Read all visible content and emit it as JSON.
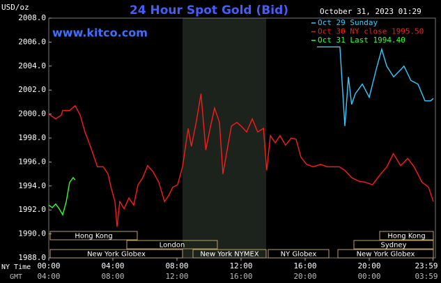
{
  "chart_data": {
    "type": "line",
    "title": "24 Hour Spot Gold (Bid)",
    "timestamp": "October 31, 2023 01:29",
    "y_unit": "USD/oz",
    "watermark": "www.kitco.com",
    "x_row_labels": [
      "NY Time",
      "GMT"
    ],
    "xlim": [
      0,
      24
    ],
    "ylim": [
      1988,
      2008
    ],
    "yticks": [
      {
        "value": 1988,
        "label": "1988.0"
      },
      {
        "value": 1990,
        "label": "1990.0"
      },
      {
        "value": 1992,
        "label": "1992.0"
      },
      {
        "value": 1994,
        "label": "1994.0"
      },
      {
        "value": 1996,
        "label": "1996.0"
      },
      {
        "value": 1998,
        "label": "1998.0"
      },
      {
        "value": 2000,
        "label": "2000.0"
      },
      {
        "value": 2002,
        "label": "2002.0"
      },
      {
        "value": 2004,
        "label": "2004.0"
      },
      {
        "value": 2006,
        "label": "2006.0"
      },
      {
        "value": 2008,
        "label": "2008.0"
      }
    ],
    "xticks": [
      {
        "value": 0,
        "label": "00:00"
      },
      {
        "value": 4,
        "label": "04:00"
      },
      {
        "value": 8,
        "label": "08:00"
      },
      {
        "value": 12,
        "label": "12:00"
      },
      {
        "value": 16,
        "label": "16:00"
      },
      {
        "value": 20,
        "label": "20:00"
      },
      {
        "value": 23.983,
        "label": "23:59"
      }
    ],
    "x2ticks": [
      {
        "value": 0,
        "label": "04:00"
      },
      {
        "value": 4,
        "label": "08:00"
      },
      {
        "value": 8,
        "label": "12:00"
      },
      {
        "value": 12,
        "label": "16:00"
      },
      {
        "value": 16,
        "label": "20:00"
      },
      {
        "value": 20,
        "label": "00:00"
      },
      {
        "value": 23.983,
        "label": "03:59"
      }
    ],
    "sessions": [
      "Hong Kong",
      "London",
      "New York Globex",
      "New York NYMEX",
      "NY Globex",
      "New York Globex",
      "Sydney",
      "Hong Kong"
    ],
    "series": [
      {
        "name": "Oct 29 Sunday",
        "color": "#33ccff",
        "x": [
          16.74,
          18.17,
          18.48,
          18.7,
          18.9,
          19.13,
          19.57,
          20.0,
          20.43,
          20.78,
          21.09,
          21.52,
          21.96,
          22.17,
          22.6,
          23.04,
          23.48,
          23.83,
          24
        ],
        "values": [
          2005.6,
          2005.6,
          1999.0,
          2003.1,
          2000.8,
          2001.7,
          2002.5,
          2001.4,
          2003.7,
          2005.4,
          2004.0,
          2003.1,
          2003.7,
          2004.0,
          2002.8,
          2002.5,
          2001.1,
          2001.1,
          2001.3
        ]
      },
      {
        "name": "Oct 30 NY close 1995.50",
        "color": "#ff1a1a",
        "x": [
          0,
          0.43,
          0.78,
          0.87,
          1.3,
          1.65,
          1.96,
          2.26,
          2.6,
          3.04,
          3.4,
          3.7,
          3.9,
          4.13,
          4.26,
          4.43,
          4.7,
          5.0,
          5.3,
          5.57,
          5.87,
          6.17,
          6.5,
          6.87,
          7.22,
          7.48,
          7.74,
          8.04,
          8.35,
          8.7,
          8.9,
          9.2,
          9.5,
          9.8,
          10.1,
          10.35,
          10.65,
          10.87,
          11.13,
          11.4,
          11.74,
          12.0,
          12.35,
          12.7,
          13.04,
          13.4,
          13.6,
          13.83,
          14.13,
          14.43,
          14.78,
          15.13,
          15.43,
          15.74,
          16.09,
          16.5,
          16.96,
          17.39,
          18.13,
          18.48,
          18.9,
          19.35,
          19.78,
          20.2,
          20.65,
          21.1,
          21.5,
          21.96,
          22.4,
          22.8,
          23.3,
          23.7,
          24
        ],
        "values": [
          2000.0,
          1999.6,
          1999.9,
          2000.3,
          2000.3,
          2000.7,
          1999.9,
          1998.5,
          1997.3,
          1995.6,
          1995.6,
          1995.0,
          1993.8,
          1992.7,
          1990.6,
          1992.7,
          1992.1,
          1993.0,
          1992.4,
          1994.1,
          1994.7,
          1995.7,
          1995.2,
          1994.3,
          1992.7,
          1993.2,
          1993.9,
          1994.1,
          1995.6,
          1998.8,
          1997.3,
          1999.3,
          2001.7,
          1997.0,
          1999.0,
          2000.5,
          1999.3,
          1995.0,
          1997.0,
          1999.0,
          1999.3,
          1999.0,
          1998.5,
          1999.6,
          1998.5,
          1998.8,
          1995.3,
          1998.2,
          1997.6,
          1998.2,
          1997.4,
          1998.0,
          1997.9,
          1996.4,
          1995.8,
          1995.6,
          1995.8,
          1995.6,
          1995.6,
          1995.3,
          1994.7,
          1994.4,
          1994.3,
          1994.1,
          1994.9,
          1995.6,
          1996.7,
          1995.7,
          1996.3,
          1995.6,
          1994.3,
          1993.9,
          1992.7
        ]
      },
      {
        "name": "Oct 31 Last 1994.40",
        "color": "#33ff33",
        "x": [
          0,
          0.22,
          0.43,
          0.65,
          0.87,
          1.09,
          1.3,
          1.52,
          1.65
        ],
        "values": [
          1992.4,
          1992.2,
          1992.5,
          1992.1,
          1991.6,
          1992.7,
          1994.3,
          1994.7,
          1994.5
        ]
      }
    ]
  }
}
